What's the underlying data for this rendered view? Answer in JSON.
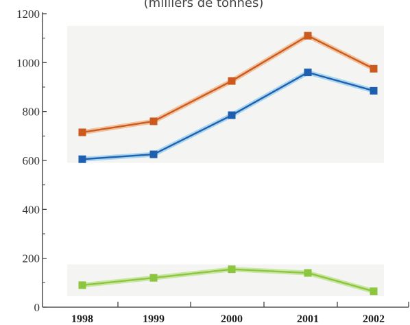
{
  "chart_data": {
    "type": "line",
    "subtitle": "(milliers de tonnes)",
    "xlabel": "",
    "ylabel": "",
    "x": [
      "1998",
      "1999",
      "2000",
      "2001",
      "2002"
    ],
    "y_ticks": [
      "0",
      "200",
      "400",
      "600",
      "800",
      "1000",
      "1200"
    ],
    "ylim": [
      0,
      1200
    ],
    "grid": false,
    "series": [
      {
        "values": [
          715,
          760,
          925,
          1110,
          975
        ],
        "color": "#cc5a1e",
        "halo": "#f0c29e"
      },
      {
        "values": [
          605,
          625,
          785,
          960,
          885
        ],
        "color": "#1f5fb0",
        "halo": "#a9d6ee"
      },
      {
        "values": [
          90,
          120,
          155,
          140,
          65
        ],
        "color": "#8cc63f",
        "halo": "#c9e6a3"
      }
    ],
    "bands": [
      {
        "y_from": 590,
        "y_to": 1150,
        "color": "#f4f4f2"
      },
      {
        "y_from": 45,
        "y_to": 175,
        "color": "#f4f4f2"
      }
    ]
  }
}
